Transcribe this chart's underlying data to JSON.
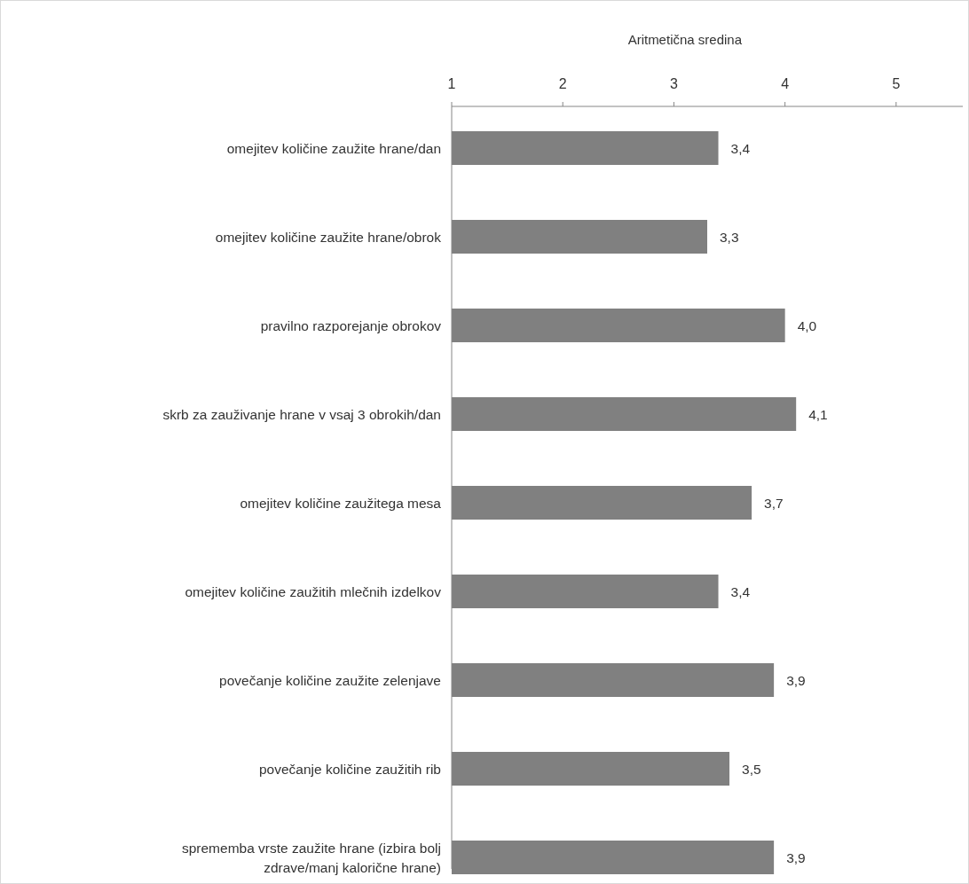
{
  "chart_data": {
    "type": "bar",
    "orientation": "horizontal",
    "xlabel": "Aritmetična sredina",
    "categories": [
      "omejitev količine zaužite hrane/dan",
      "omejitev količine zaužite hrane/obrok",
      "pravilno razporejanje obrokov",
      "skrb za zauživanje hrane v vsaj 3 obrokih/dan",
      "omejitev količine zaužitega mesa",
      "omejitev količine zaužitih mlečnih izdelkov",
      "povečanje količine zaužite zelenjave",
      "povečanje količine zaužitih rib",
      "sprememba vrste zaužite hrane (izbira bolj zdrave/manj kalorične hrane)"
    ],
    "values": [
      3.4,
      3.3,
      4.0,
      4.1,
      3.7,
      3.4,
      3.9,
      3.5,
      3.9
    ],
    "value_labels": [
      "3,4",
      "3,3",
      "4,0",
      "4,1",
      "3,7",
      "3,4",
      "3,9",
      "3,5",
      "3,9"
    ],
    "color": "#808080",
    "xlim": [
      1,
      5.6
    ],
    "xticks": [
      1,
      2,
      3,
      4,
      5
    ]
  }
}
